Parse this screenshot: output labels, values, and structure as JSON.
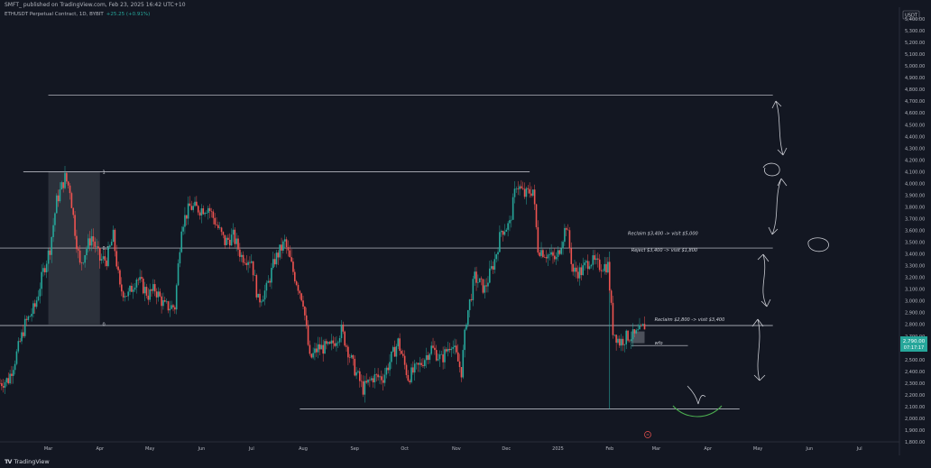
{
  "header": {
    "caption": "SMFT_ published on TradingView.com, Feb 23, 2025 16:42 UTC+10",
    "symbol": "ETHUSDT Perpetual Contract, 1D, BYBIT",
    "change": "+25.25 (+0.91%)"
  },
  "footer": {
    "brand_logo": "TV",
    "brand": "TradingView"
  },
  "colors": {
    "background": "#131722",
    "up": "#26a69a",
    "down": "#ef5350",
    "line": "#d1d4dc",
    "scribble": "#c7c9d0",
    "smile": "#4caf50",
    "zone": "#5d606b",
    "price_tag": "#26a69a"
  },
  "icons": {
    "alert": "alert-bell-icon"
  },
  "chart_data": {
    "type": "candlestick",
    "currency_label": "USDT",
    "ylim": [
      1800,
      5500
    ],
    "y_ticks": [
      "5,400.00",
      "5,300.00",
      "5,200.00",
      "5,100.00",
      "5,000.00",
      "4,900.00",
      "4,800.00",
      "4,700.00",
      "4,600.00",
      "4,500.00",
      "4,400.00",
      "4,300.00",
      "4,200.00",
      "4,100.00",
      "4,000.00",
      "3,900.00",
      "3,800.00",
      "3,700.00",
      "3,600.00",
      "3,500.00",
      "3,400.00",
      "3,300.00",
      "3,200.00",
      "3,100.00",
      "3,000.00",
      "2,900.00",
      "2,800.00",
      "2,700.00",
      "2,600.00",
      "2,500.00",
      "2,400.00",
      "2,300.00",
      "2,200.00",
      "2,100.00",
      "2,000.00",
      "1,900.00",
      "1,800.00"
    ],
    "x_ticks": [
      {
        "date": "2024-03-01",
        "label": "Mar"
      },
      {
        "date": "2024-04-01",
        "label": "Apr"
      },
      {
        "date": "2024-05-01",
        "label": "May"
      },
      {
        "date": "2024-06-01",
        "label": "Jun"
      },
      {
        "date": "2024-07-01",
        "label": "Jul"
      },
      {
        "date": "2024-08-01",
        "label": "Aug"
      },
      {
        "date": "2024-09-01",
        "label": "Sep"
      },
      {
        "date": "2024-10-01",
        "label": "Oct"
      },
      {
        "date": "2024-11-01",
        "label": "Nov"
      },
      {
        "date": "2024-12-01",
        "label": "Dec"
      },
      {
        "date": "2025-01-01",
        "label": "2025"
      },
      {
        "date": "2025-02-01",
        "label": "Feb"
      },
      {
        "date": "2025-03-01",
        "label": "Mar"
      },
      {
        "date": "2025-04-01",
        "label": "Apr"
      },
      {
        "date": "2025-05-01",
        "label": "May"
      },
      {
        "date": "2025-06-01",
        "label": "Jun"
      },
      {
        "date": "2025-07-01",
        "label": "Jul"
      }
    ],
    "x_range": [
      "2024-02-01",
      "2025-07-25"
    ],
    "last_price": "2,790.00",
    "countdown": "07:17:17",
    "path": [
      [
        "2024-02-01",
        2300
      ],
      [
        "2024-02-06",
        2330
      ],
      [
        "2024-02-10",
        2500
      ],
      [
        "2024-02-16",
        2800
      ],
      [
        "2024-02-22",
        2950
      ],
      [
        "2024-02-27",
        3250
      ],
      [
        "2024-03-02",
        3450
      ],
      [
        "2024-03-06",
        3850
      ],
      [
        "2024-03-11",
        4050
      ],
      [
        "2024-03-14",
        3950
      ],
      [
        "2024-03-17",
        3600
      ],
      [
        "2024-03-20",
        3300
      ],
      [
        "2024-03-24",
        3450
      ],
      [
        "2024-03-27",
        3550
      ],
      [
        "2024-04-01",
        3350
      ],
      [
        "2024-04-05",
        3350
      ],
      [
        "2024-04-09",
        3550
      ],
      [
        "2024-04-13",
        3100
      ],
      [
        "2024-04-18",
        3050
      ],
      [
        "2024-04-23",
        3200
      ],
      [
        "2024-04-30",
        3050
      ],
      [
        "2024-05-04",
        3100
      ],
      [
        "2024-05-10",
        2950
      ],
      [
        "2024-05-16",
        2950
      ],
      [
        "2024-05-20",
        3650
      ],
      [
        "2024-05-25",
        3800
      ],
      [
        "2024-05-31",
        3780
      ],
      [
        "2024-06-05",
        3800
      ],
      [
        "2024-06-10",
        3650
      ],
      [
        "2024-06-15",
        3500
      ],
      [
        "2024-06-20",
        3550
      ],
      [
        "2024-06-25",
        3380
      ],
      [
        "2024-07-01",
        3350
      ],
      [
        "2024-07-05",
        3000
      ],
      [
        "2024-07-10",
        3100
      ],
      [
        "2024-07-15",
        3350
      ],
      [
        "2024-07-21",
        3500
      ],
      [
        "2024-07-26",
        3250
      ],
      [
        "2024-08-01",
        3000
      ],
      [
        "2024-08-05",
        2500
      ],
      [
        "2024-08-10",
        2600
      ],
      [
        "2024-08-17",
        2600
      ],
      [
        "2024-08-24",
        2750
      ],
      [
        "2024-08-31",
        2450
      ],
      [
        "2024-09-06",
        2250
      ],
      [
        "2024-09-12",
        2350
      ],
      [
        "2024-09-18",
        2350
      ],
      [
        "2024-09-27",
        2650
      ],
      [
        "2024-10-03",
        2350
      ],
      [
        "2024-10-10",
        2450
      ],
      [
        "2024-10-17",
        2600
      ],
      [
        "2024-10-23",
        2500
      ],
      [
        "2024-10-29",
        2650
      ],
      [
        "2024-11-04",
        2400
      ],
      [
        "2024-11-07",
        2850
      ],
      [
        "2024-11-12",
        3200
      ],
      [
        "2024-11-18",
        3100
      ],
      [
        "2024-11-24",
        3350
      ],
      [
        "2024-11-28",
        3600
      ],
      [
        "2024-12-03",
        3650
      ],
      [
        "2024-12-07",
        4000
      ],
      [
        "2024-12-12",
        3900
      ],
      [
        "2024-12-17",
        3950
      ],
      [
        "2024-12-20",
        3450
      ],
      [
        "2024-12-25",
        3400
      ],
      [
        "2024-12-31",
        3350
      ],
      [
        "2025-01-06",
        3650
      ],
      [
        "2025-01-10",
        3250
      ],
      [
        "2025-01-15",
        3250
      ],
      [
        "2025-01-20",
        3350
      ],
      [
        "2025-01-25",
        3300
      ],
      [
        "2025-01-31",
        3300
      ],
      [
        "2025-02-03",
        2750
      ],
      [
        "2025-02-07",
        2650
      ],
      [
        "2025-02-12",
        2700
      ],
      [
        "2025-02-16",
        2700
      ],
      [
        "2025-02-20",
        2750
      ],
      [
        "2025-02-22",
        2790
      ]
    ],
    "annotations": {
      "zone_box": {
        "from": "2024-03-01",
        "to": "2024-04-01",
        "low": 2800,
        "high": 4100
      },
      "fib": [
        {
          "label": "1",
          "price": 4100
        },
        {
          "label": "0.5",
          "price": 3450
        },
        {
          "label": "0",
          "price": 2800
        }
      ],
      "levels": [
        {
          "price": 4750,
          "from": "2024-03-01",
          "to": "2025-05-10"
        },
        {
          "price": 4100,
          "from": "2024-02-15",
          "to": "2024-12-15"
        },
        {
          "price": 3450,
          "from": "2024-02-01",
          "to": "2025-05-10"
        },
        {
          "price": 2790,
          "from": "2024-02-01",
          "to": "2025-05-10"
        },
        {
          "price": 2080,
          "from": "2024-07-30",
          "to": "2025-04-20"
        }
      ],
      "small_box": {
        "from": "2025-02-14",
        "to": "2025-02-22",
        "low": 2640,
        "high": 2740
      },
      "wfo_line": {
        "price": 2620,
        "from": "2025-02-14",
        "to": "2025-03-20"
      },
      "texts": [
        {
          "text": "Reclaim $3,400 -> visit $5,000",
          "date": "2025-02-12",
          "price": 3560
        },
        {
          "text": "Reject $3,400 -> visit $1,800",
          "date": "2025-02-14",
          "price": 3420
        },
        {
          "text": "Reclaim $2,800 -> visit $3,400",
          "date": "2025-02-28",
          "price": 2830
        },
        {
          "text": "wfo",
          "date": "2025-02-28",
          "price": 2628
        }
      ]
    }
  }
}
